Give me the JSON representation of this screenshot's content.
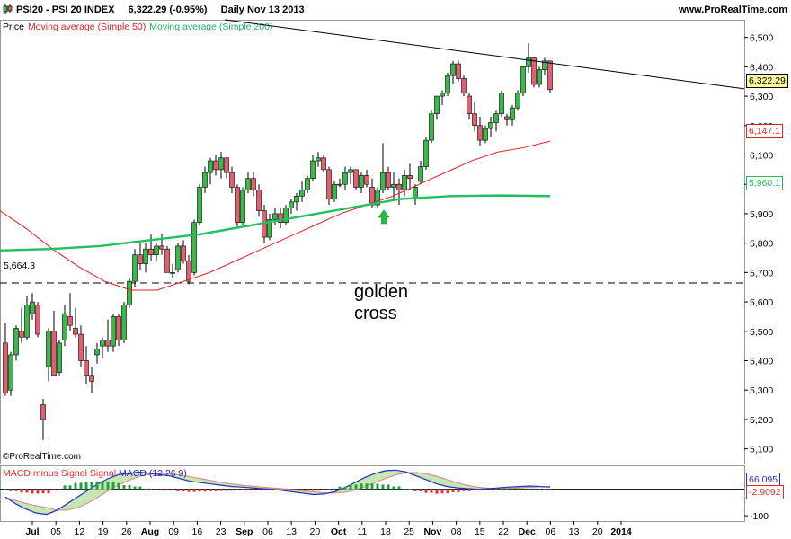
{
  "header": {
    "symbol": "PSI20 - PSI 20 INDEX",
    "last": "6,322.29 (-0.95%)",
    "period": "Daily  Nov 13 2013",
    "site": "www.ProRealTime.com"
  },
  "legend": {
    "price": "Price",
    "ma50": "Moving average (Simple 50)",
    "ma200": "Moving average (Simple 200)"
  },
  "copyright": "©ProRealTime.com",
  "annotation": {
    "line1": "golden",
    "line2": "cross"
  },
  "macd_legend": {
    "hist": "MACD minus Signal Signal",
    "macd": "MACD (12 26 9)"
  },
  "price_tags": {
    "last": "6,322.29",
    "ma50": "6,147.1",
    "ma200": "5,960.1",
    "level": "5,664.3"
  },
  "macd_tags": {
    "macd": "66.095",
    "hist": "-2.9092"
  },
  "colors": {
    "up": "#3cb84a",
    "down": "#e06070",
    "ma50": "#e0201f",
    "ma200": "#20c060",
    "macd": "#2030c0",
    "signal_fill": "#b8e0a0",
    "hist_pos": "#20a040",
    "hist_neg": "#e03030"
  },
  "chart_data": [
    {
      "type": "candlestick",
      "title": "PSI20 - PSI 20 INDEX",
      "ylim": [
        5050,
        6560
      ],
      "yticks": [
        5100,
        5200,
        5300,
        5400,
        5500,
        5600,
        5700,
        5800,
        5900,
        6000,
        6100,
        6200,
        6300,
        6400,
        6500
      ],
      "ytick_labels": [
        "5,100",
        "5,200",
        "5,300",
        "5,400",
        "5,500",
        "5,600",
        "5,700",
        "5,800",
        "5,900",
        "6,000",
        "6,100",
        "6,200",
        "6,300",
        "6,400",
        "6,500"
      ],
      "xtick_labels": [
        "Jul",
        "05",
        "12",
        "19",
        "26",
        "Aug",
        "09",
        "16",
        "23",
        "Sep",
        "06",
        "13",
        "20",
        "Oct",
        "11",
        "18",
        "25",
        "Nov",
        "08",
        "15",
        "22",
        "Dec",
        "06",
        "13",
        "20",
        "2014"
      ],
      "horizontal_level": 5664.3,
      "candles": [
        [
          5460,
          5530,
          5280,
          5290
        ],
        [
          5300,
          5430,
          5280,
          5420
        ],
        [
          5420,
          5520,
          5400,
          5510
        ],
        [
          5500,
          5580,
          5460,
          5480
        ],
        [
          5480,
          5620,
          5470,
          5590
        ],
        [
          5560,
          5630,
          5540,
          5600
        ],
        [
          5590,
          5600,
          5480,
          5490
        ],
        [
          5250,
          5270,
          5130,
          5200
        ],
        [
          5380,
          5510,
          5330,
          5500
        ],
        [
          5500,
          5570,
          5360,
          5350
        ],
        [
          5360,
          5470,
          5350,
          5460
        ],
        [
          5470,
          5590,
          5450,
          5560
        ],
        [
          5550,
          5630,
          5500,
          5520
        ],
        [
          5510,
          5580,
          5480,
          5490
        ],
        [
          5490,
          5520,
          5380,
          5400
        ],
        [
          5400,
          5450,
          5320,
          5350
        ],
        [
          5350,
          5380,
          5290,
          5330
        ],
        [
          5420,
          5460,
          5390,
          5440
        ],
        [
          5450,
          5480,
          5410,
          5470
        ],
        [
          5470,
          5540,
          5430,
          5450
        ],
        [
          5450,
          5560,
          5430,
          5550
        ],
        [
          5550,
          5560,
          5450,
          5470
        ],
        [
          5470,
          5600,
          5460,
          5590
        ],
        [
          5590,
          5680,
          5580,
          5670
        ],
        [
          5670,
          5780,
          5650,
          5760
        ],
        [
          5760,
          5800,
          5710,
          5730
        ],
        [
          5730,
          5800,
          5700,
          5780
        ],
        [
          5780,
          5830,
          5740,
          5760
        ],
        [
          5760,
          5800,
          5740,
          5790
        ],
        [
          5790,
          5830,
          5760,
          5780
        ],
        [
          5780,
          5790,
          5700,
          5700
        ],
        [
          5700,
          5730,
          5680,
          5700
        ],
        [
          5710,
          5800,
          5700,
          5790
        ],
        [
          5790,
          5810,
          5730,
          5740
        ],
        [
          5740,
          5760,
          5660,
          5670
        ],
        [
          5700,
          5880,
          5690,
          5870
        ],
        [
          5870,
          6000,
          5860,
          5990
        ],
        [
          5990,
          6060,
          5970,
          6040
        ],
        [
          6040,
          6090,
          6000,
          6080
        ],
        [
          6080,
          6100,
          6030,
          6050
        ],
        [
          6050,
          6110,
          6020,
          6090
        ],
        [
          6090,
          6080,
          6020,
          6040
        ],
        [
          6040,
          6060,
          5970,
          5990
        ],
        [
          5990,
          6000,
          5850,
          5870
        ],
        [
          5870,
          5990,
          5860,
          5980
        ],
        [
          5980,
          6040,
          5970,
          6020
        ],
        [
          6020,
          6040,
          5960,
          5980
        ],
        [
          5980,
          6000,
          5890,
          5910
        ],
        [
          5910,
          5930,
          5800,
          5820
        ],
        [
          5820,
          5900,
          5810,
          5880
        ],
        [
          5880,
          5920,
          5860,
          5900
        ],
        [
          5900,
          5920,
          5850,
          5870
        ],
        [
          5870,
          5930,
          5860,
          5920
        ],
        [
          5920,
          5950,
          5900,
          5940
        ],
        [
          5940,
          5970,
          5910,
          5960
        ],
        [
          5960,
          6010,
          5940,
          5980
        ],
        [
          5980,
          6030,
          5970,
          6020
        ],
        [
          6020,
          6100,
          6010,
          6080
        ],
        [
          6080,
          6110,
          6060,
          6090
        ],
        [
          6090,
          6100,
          6040,
          6050
        ],
        [
          6050,
          6060,
          5930,
          5950
        ],
        [
          5950,
          6010,
          5940,
          6000
        ],
        [
          6000,
          6020,
          5990,
          6000
        ],
        [
          6000,
          6060,
          5980,
          6040
        ],
        [
          6040,
          6060,
          6000,
          6050
        ],
        [
          6050,
          6050,
          5980,
          5990
        ],
        [
          5990,
          6040,
          5970,
          6030
        ],
        [
          6030,
          6050,
          5990,
          6000
        ],
        [
          5990,
          6020,
          5920,
          5930
        ],
        [
          5930,
          5990,
          5920,
          5980
        ],
        [
          5980,
          6140,
          5970,
          6040
        ],
        [
          6040,
          6060,
          5980,
          5990
        ],
        [
          5990,
          6040,
          5950,
          6000
        ],
        [
          6000,
          6020,
          5930,
          5980
        ],
        [
          5980,
          6050,
          5960,
          6030
        ],
        [
          6030,
          6070,
          5980,
          6020
        ],
        [
          5950,
          6000,
          5930,
          5990
        ],
        [
          6010,
          6080,
          6000,
          6060
        ],
        [
          6060,
          6160,
          6050,
          6150
        ],
        [
          6150,
          6250,
          6140,
          6240
        ],
        [
          6240,
          6300,
          6220,
          6300
        ],
        [
          6300,
          6320,
          6270,
          6310
        ],
        [
          6310,
          6380,
          6300,
          6370
        ],
        [
          6370,
          6420,
          6340,
          6410
        ],
        [
          6410,
          6420,
          6350,
          6360
        ],
        [
          6360,
          6370,
          6300,
          6310
        ],
        [
          6300,
          6310,
          6220,
          6240
        ],
        [
          6240,
          6280,
          6180,
          6200
        ],
        [
          6200,
          6230,
          6130,
          6150
        ],
        [
          6150,
          6200,
          6140,
          6190
        ],
        [
          6190,
          6230,
          6160,
          6210
        ],
        [
          6210,
          6250,
          6180,
          6240
        ],
        [
          6240,
          6320,
          6230,
          6310
        ],
        [
          6230,
          6240,
          6200,
          6220
        ],
        [
          6220,
          6270,
          6200,
          6260
        ],
        [
          6260,
          6320,
          6250,
          6310
        ],
        [
          6310,
          6400,
          6300,
          6400
        ],
        [
          6400,
          6480,
          6380,
          6430
        ],
        [
          6430,
          6420,
          6330,
          6340
        ],
        [
          6340,
          6400,
          6330,
          6390
        ],
        [
          6390,
          6430,
          6370,
          6420
        ],
        [
          6420,
          6420,
          6310,
          6322.29
        ]
      ],
      "ma50": [
        [
          5910,
          5980
        ],
        [
          5850,
          5930
        ],
        [
          5780,
          5880
        ],
        [
          5720,
          5840
        ],
        [
          5670,
          5790
        ],
        [
          5640,
          5760
        ],
        [
          5640,
          5740
        ],
        [
          5670,
          5720
        ],
        [
          5700,
          5720
        ],
        [
          5740,
          5720
        ],
        [
          5780,
          5730
        ],
        [
          5820,
          5760
        ],
        [
          5860,
          5790
        ],
        [
          5900,
          5840
        ],
        [
          5930,
          5880
        ],
        [
          5960,
          5920
        ],
        [
          6000,
          5960
        ],
        [
          6040,
          6000
        ],
        [
          6080,
          6040
        ],
        [
          6110,
          6080
        ],
        [
          6125,
          6100
        ],
        [
          6147.1,
          6147.1
        ]
      ],
      "ma200": [
        5775,
        5780,
        5790,
        5810,
        5830,
        5860,
        5890,
        5920,
        5950,
        5960,
        5962,
        5960.1
      ],
      "trendline": [
        [
          6520,
          0
        ],
        [
          6380,
          1
        ]
      ]
    },
    {
      "type": "macd",
      "title": "MACD (12 26 9)",
      "ylim": [
        -120,
        90
      ],
      "ytick_labels": [
        "-100"
      ],
      "macd_value": 66.095,
      "hist_value": -2.9092
    }
  ]
}
